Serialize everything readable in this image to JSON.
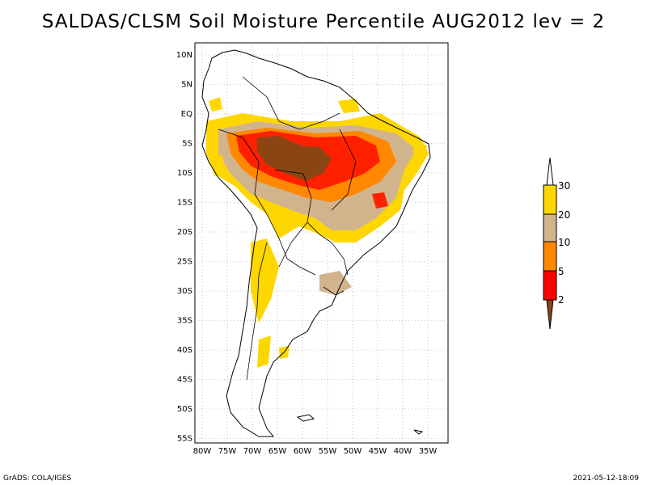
{
  "title": "SALDAS/CLSM Soil Moisture Percentile AUG2012 lev = 2",
  "lat_labels": [
    "10N",
    "5N",
    "EQ",
    "5S",
    "10S",
    "15S",
    "20S",
    "25S",
    "30S",
    "35S",
    "40S",
    "45S",
    "50S",
    "55S"
  ],
  "lon_labels": [
    "80W",
    "75W",
    "70W",
    "65W",
    "60W",
    "55W",
    "50W",
    "45W",
    "40W",
    "35W"
  ],
  "colorbar": {
    "labels": [
      "2",
      "5",
      "10",
      "20",
      "30"
    ],
    "colors": [
      "#8B4513",
      "#FF0000",
      "#FF8800",
      "#D2B48C",
      "#FFD700",
      "#FFFFFF"
    ]
  },
  "footer": {
    "left": "GrADS: COLA/IGES",
    "right": "2021-05-12-18:09"
  }
}
